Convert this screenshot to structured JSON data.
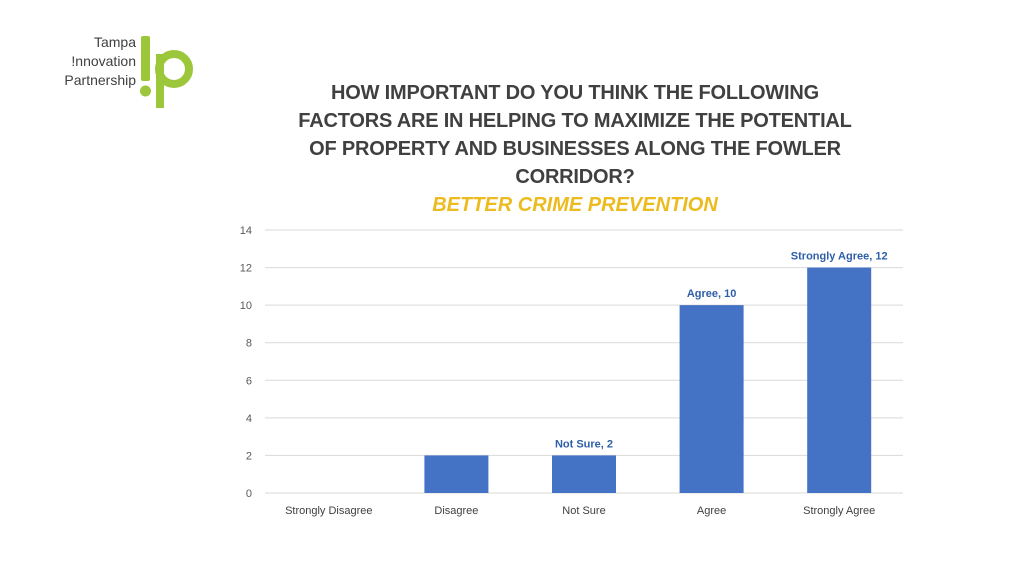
{
  "logo": {
    "lines": [
      "Tampa",
      "!nnovation",
      "Partnership"
    ],
    "mark": "!p",
    "colors": {
      "text": "#404040",
      "mark": "#9dc73a"
    }
  },
  "chart_data": {
    "type": "bar",
    "title": "HOW IMPORTANT DO YOU THINK THE FOLLOWING FACTORS ARE IN HELPING TO MAXIMIZE THE POTENTIAL OF PROPERTY AND BUSINESSES ALONG THE FOWLER CORRIDOR?",
    "subtitle": "BETTER CRIME PREVENTION",
    "categories": [
      "Strongly Disagree",
      "Disagree",
      "Not Sure",
      "Agree",
      "Strongly Agree"
    ],
    "values": [
      0,
      2,
      2,
      10,
      12
    ],
    "data_labels": [
      "",
      "",
      "Not Sure, 2",
      "Agree, 10",
      "Strongly Agree, 12"
    ],
    "ylim": [
      0,
      14
    ],
    "yticks": [
      0,
      2,
      4,
      6,
      8,
      10,
      12,
      14
    ],
    "xlabel": "",
    "ylabel": "",
    "grid": true,
    "colors": {
      "bar": "#4472c4",
      "grid": "#d9d9d9",
      "title": "#404040",
      "subtitle": "#ecbb1f",
      "label": "#2e5ea8"
    }
  }
}
